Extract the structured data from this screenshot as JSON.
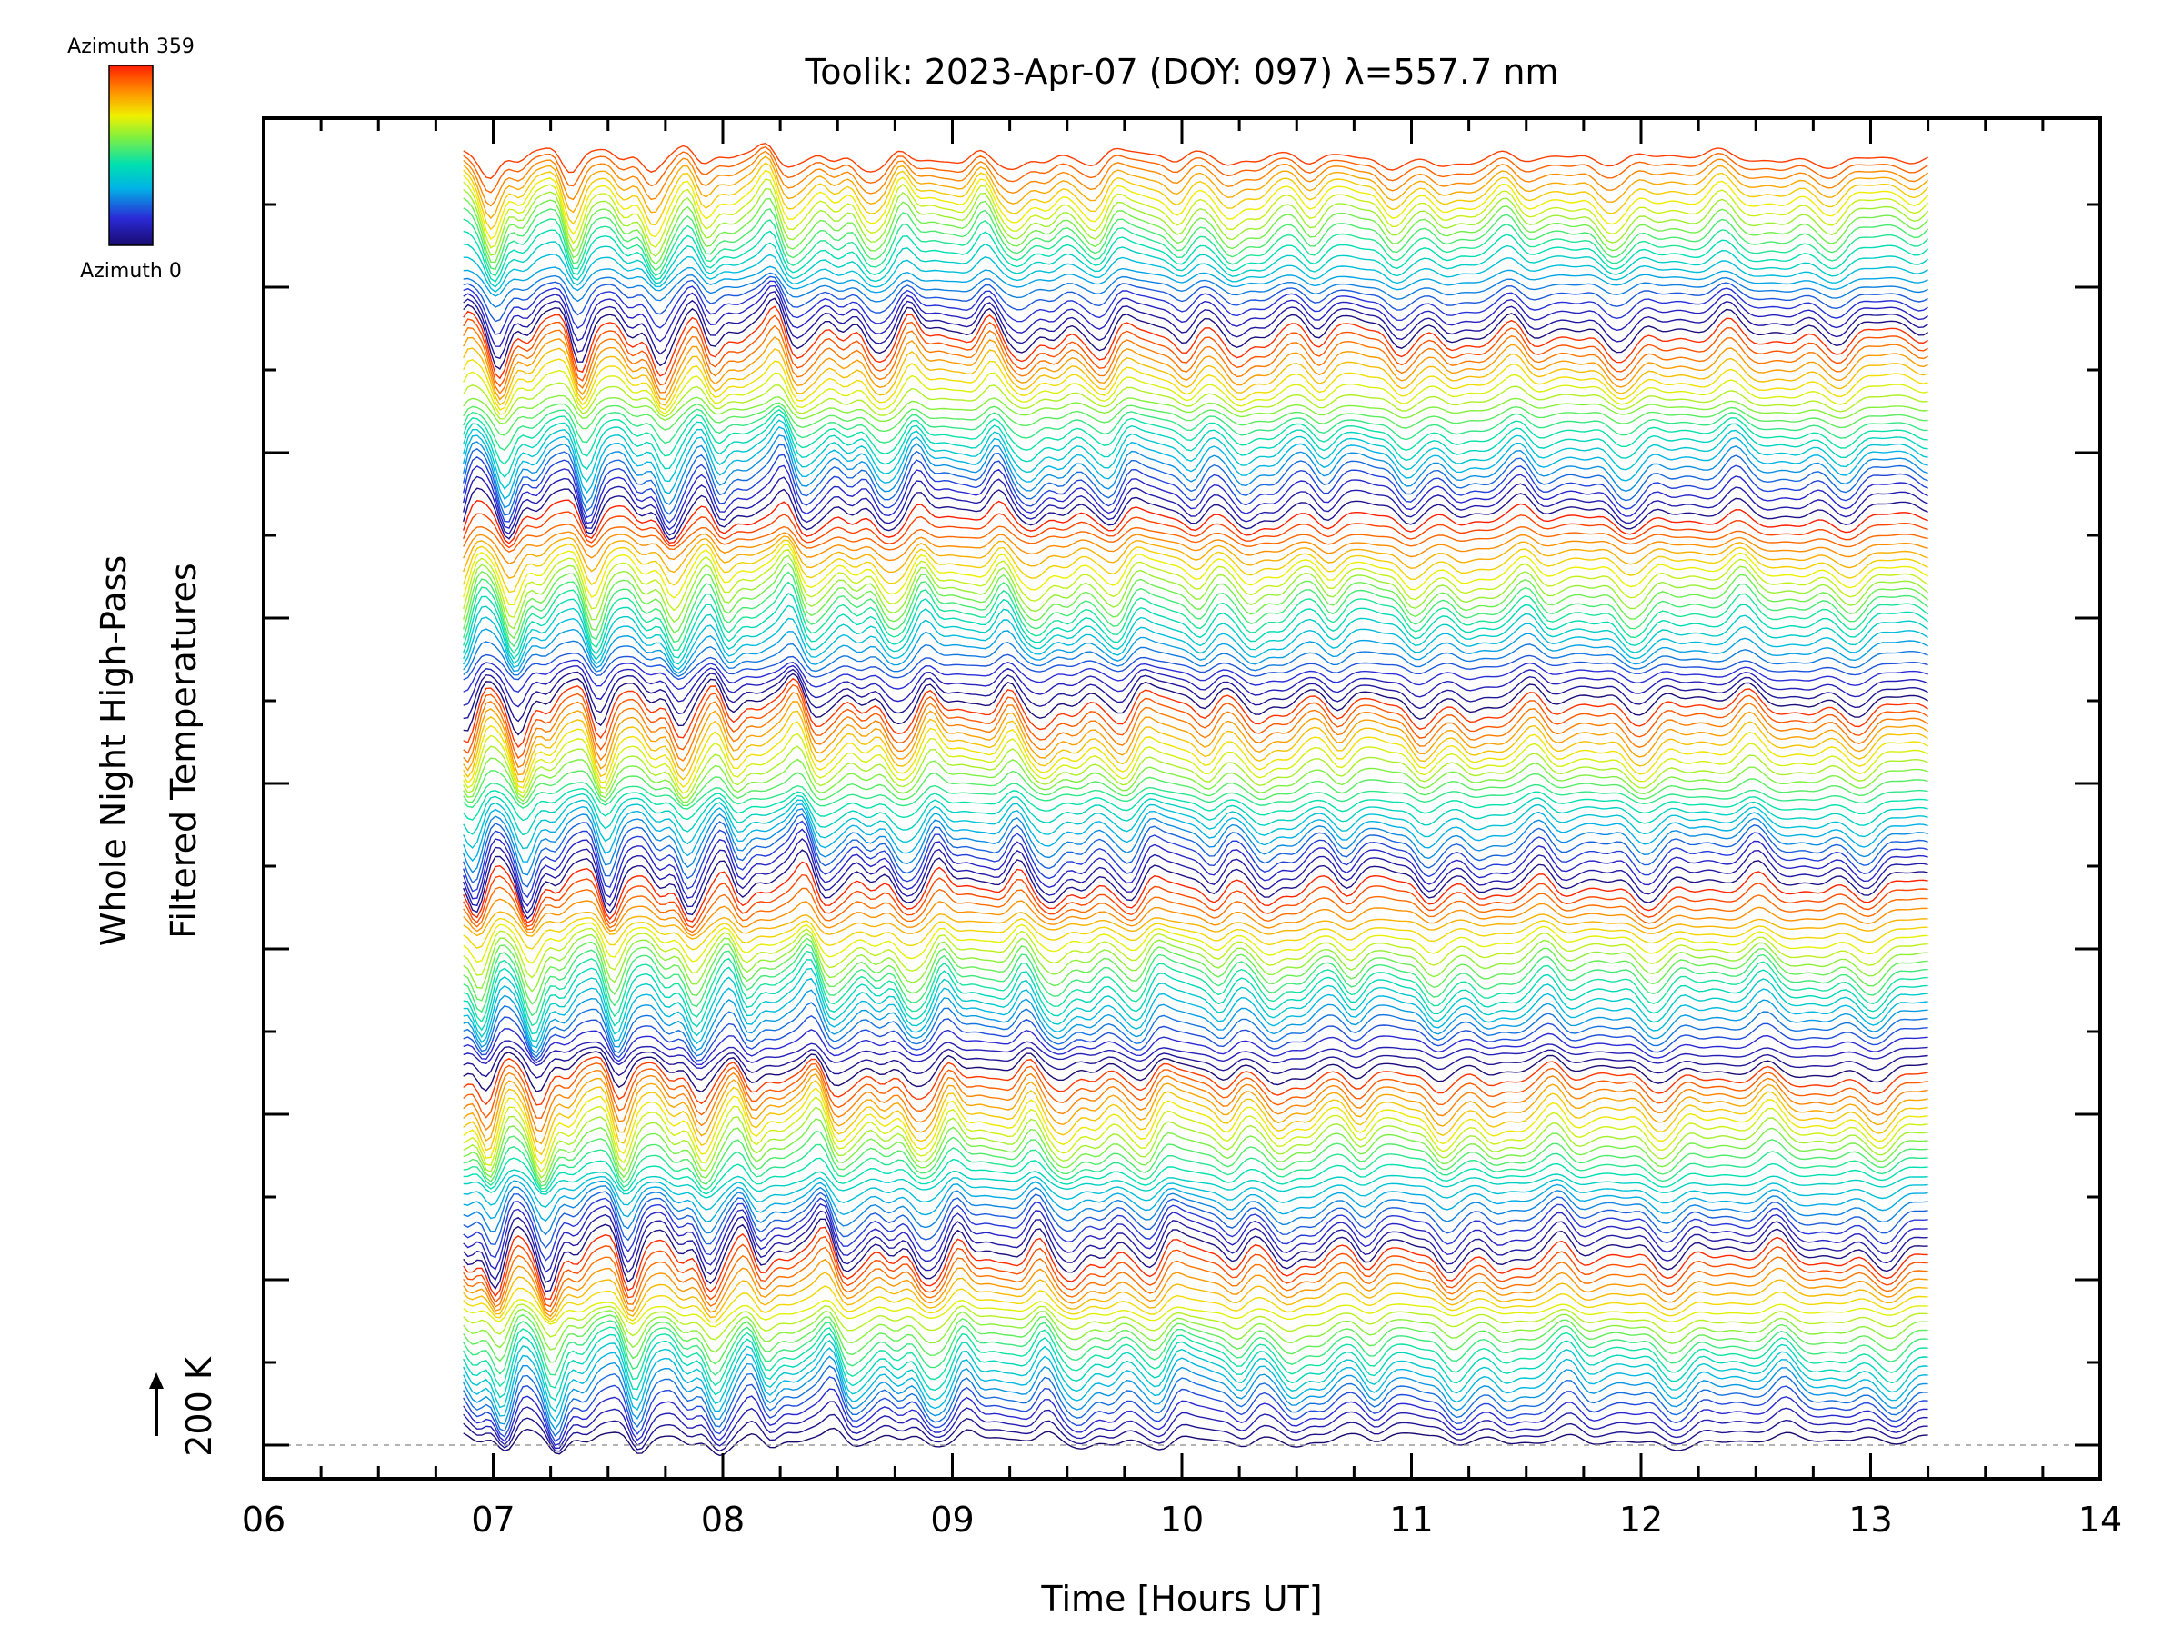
{
  "chart_data": {
    "type": "line",
    "title": "Toolik: 2023-Apr-07 (DOY: 097) λ=557.7 nm",
    "xlabel": "Time [Hours UT]",
    "ylabel_line1": "Whole Night High-Pass",
    "ylabel_line2": "Filtered Temperatures",
    "xlim": [
      6,
      14
    ],
    "x_tick_labels": [
      "06",
      "07",
      "08",
      "09",
      "10",
      "11",
      "12",
      "13",
      "14"
    ],
    "data_x_range": [
      6.87,
      13.25
    ],
    "scale_bar_label": "200 K",
    "colorbar": {
      "top_label": "Azimuth 359",
      "bottom_label": "Azimuth 0",
      "colormap": "rainbow"
    },
    "series_count": 150,
    "azimuth_range": [
      0,
      359
    ],
    "grid": false
  }
}
